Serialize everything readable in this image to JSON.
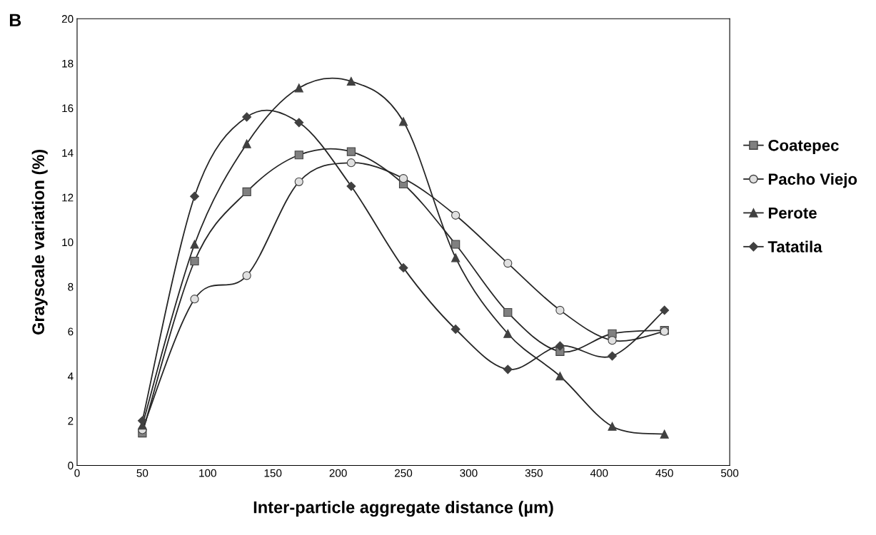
{
  "chart_data": {
    "type": "line",
    "xlabel": "Inter-particle aggregate distance (µm)",
    "ylabel": "Grayscale variation (%)",
    "annotations": [
      "B"
    ],
    "x": [
      50,
      90,
      130,
      170,
      210,
      250,
      290,
      330,
      370,
      410,
      450
    ],
    "series": [
      {
        "name": "Coatepec",
        "color": "#808080",
        "marker": "square",
        "values": [
          1.45,
          9.15,
          12.25,
          13.9,
          14.05,
          12.6,
          9.9,
          6.85,
          5.1,
          5.9,
          6.05
        ]
      },
      {
        "name": "Pacho Viejo",
        "color": "#e0e0e0",
        "marker": "circle",
        "values": [
          1.6,
          7.45,
          8.5,
          12.7,
          13.55,
          12.85,
          11.2,
          9.05,
          6.95,
          5.6,
          6.0
        ]
      },
      {
        "name": "Perote",
        "color": "#404040",
        "marker": "triangle",
        "values": [
          1.8,
          9.9,
          14.4,
          16.9,
          17.2,
          15.4,
          9.3,
          5.9,
          4.0,
          1.75,
          1.4
        ]
      },
      {
        "name": "Tatatila",
        "color": "#404040",
        "marker": "diamond",
        "values": [
          2.0,
          12.05,
          15.6,
          15.35,
          12.5,
          8.85,
          6.1,
          4.3,
          5.35,
          4.9,
          6.95
        ]
      }
    ],
    "xlim": [
      0,
      500
    ],
    "xticks": [
      0,
      50,
      100,
      150,
      200,
      250,
      300,
      350,
      400,
      450,
      500
    ],
    "ylim": [
      0,
      20
    ],
    "yticks": [
      0,
      2,
      4,
      6,
      8,
      10,
      12,
      14,
      16,
      18,
      20
    ],
    "grid": false,
    "legend": "right",
    "line_style": "solid"
  }
}
